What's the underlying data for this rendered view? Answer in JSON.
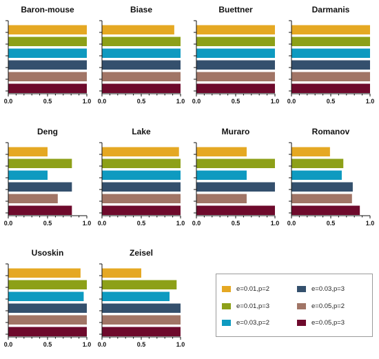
{
  "series": [
    {
      "name": "e=0.01,p=2",
      "color": "#e5a823"
    },
    {
      "name": "e=0.01,p=3",
      "color": "#8da018"
    },
    {
      "name": "e=0.03,p=2",
      "color": "#0e9ac0"
    },
    {
      "name": "e=0.03,p=3",
      "color": "#34506d"
    },
    {
      "name": "e=0.05,p=2",
      "color": "#a17566"
    },
    {
      "name": "e=0.05,p=3",
      "color": "#6e0a2c"
    }
  ],
  "chart_data": [
    {
      "type": "bar",
      "orientation": "horizontal",
      "title": "Baron-mouse",
      "xlim": [
        0,
        1
      ],
      "xticks": [
        "0.0",
        "0.5",
        "1.0"
      ],
      "values": [
        1.0,
        1.0,
        1.0,
        1.0,
        1.0,
        1.0
      ]
    },
    {
      "type": "bar",
      "orientation": "horizontal",
      "title": "Biase",
      "xlim": [
        0,
        1
      ],
      "xticks": [
        "0.0",
        "0.5",
        "1.0"
      ],
      "values": [
        0.92,
        1.0,
        1.0,
        1.0,
        1.0,
        1.0
      ]
    },
    {
      "type": "bar",
      "orientation": "horizontal",
      "title": "Buettner",
      "xlim": [
        0,
        1
      ],
      "xticks": [
        "0.0",
        "0.5",
        "1.0"
      ],
      "values": [
        1.0,
        1.0,
        1.0,
        1.0,
        1.0,
        1.0
      ]
    },
    {
      "type": "bar",
      "orientation": "horizontal",
      "title": "Darmanis",
      "xlim": [
        0,
        1
      ],
      "xticks": [
        "0.0",
        "0.5",
        "1.0"
      ],
      "values": [
        1.0,
        1.0,
        1.0,
        1.0,
        1.0,
        1.0
      ]
    },
    {
      "type": "bar",
      "orientation": "horizontal",
      "title": "Deng",
      "xlim": [
        0,
        1
      ],
      "xticks": [
        "0.0",
        "0.5",
        "1.0"
      ],
      "values": [
        0.5,
        0.81,
        0.5,
        0.81,
        0.63,
        0.81
      ]
    },
    {
      "type": "bar",
      "orientation": "horizontal",
      "title": "Lake",
      "xlim": [
        0,
        1
      ],
      "xticks": [
        "0.0",
        "0.5",
        "1.0"
      ],
      "values": [
        0.98,
        1.0,
        1.0,
        1.0,
        1.0,
        1.0
      ]
    },
    {
      "type": "bar",
      "orientation": "horizontal",
      "title": "Muraro",
      "xlim": [
        0,
        1
      ],
      "xticks": [
        "0.0",
        "0.5",
        "1.0"
      ],
      "values": [
        0.64,
        1.0,
        0.64,
        1.0,
        0.64,
        1.0
      ]
    },
    {
      "type": "bar",
      "orientation": "horizontal",
      "title": "Romanov",
      "xlim": [
        0,
        1
      ],
      "xticks": [
        "0.0",
        "0.5",
        "1.0"
      ],
      "values": [
        0.49,
        0.66,
        0.64,
        0.78,
        0.77,
        0.87
      ]
    },
    {
      "type": "bar",
      "orientation": "horizontal",
      "title": "Usoskin",
      "xlim": [
        0,
        1
      ],
      "xticks": [
        "0.0",
        "0.5",
        "1.0"
      ],
      "values": [
        0.92,
        1.0,
        0.96,
        1.0,
        1.0,
        1.0
      ]
    },
    {
      "type": "bar",
      "orientation": "horizontal",
      "title": "Zeisel",
      "xlim": [
        0,
        1
      ],
      "xticks": [
        "0.0",
        "0.5",
        "1.0"
      ],
      "values": [
        0.5,
        0.95,
        0.86,
        1.0,
        1.0,
        1.0
      ]
    }
  ]
}
